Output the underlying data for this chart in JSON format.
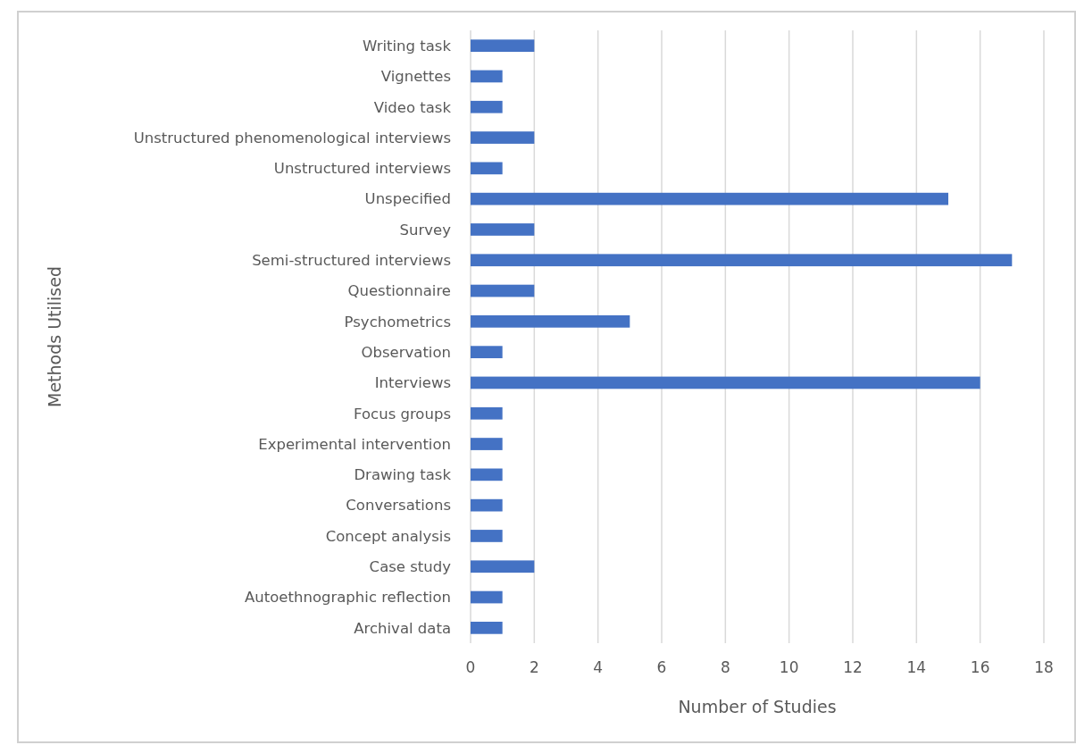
{
  "chart_data": {
    "type": "bar",
    "orientation": "horizontal",
    "xlabel": "Number of Studies",
    "ylabel": "Methods Utilised",
    "categories": [
      "Writing task",
      "Vignettes",
      "Video task",
      "Unstructured phenomenological interviews",
      "Unstructured interviews",
      "Unspecified",
      "Survey",
      "Semi-structured interviews",
      "Questionnaire",
      "Psychometrics",
      "Observation",
      "Interviews",
      "Focus groups",
      "Experimental intervention",
      "Drawing task",
      "Conversations",
      "Concept analysis",
      "Case study",
      "Autoethnographic reflection",
      "Archival data"
    ],
    "values": [
      2,
      1,
      1,
      2,
      1,
      15,
      2,
      17,
      2,
      5,
      1,
      16,
      1,
      1,
      1,
      1,
      1,
      2,
      1,
      1
    ],
    "color": "#4472c4",
    "xlim": [
      0,
      18
    ],
    "xticks": [
      0,
      2,
      4,
      6,
      8,
      10,
      12,
      14,
      16,
      18
    ],
    "grid": "x"
  }
}
